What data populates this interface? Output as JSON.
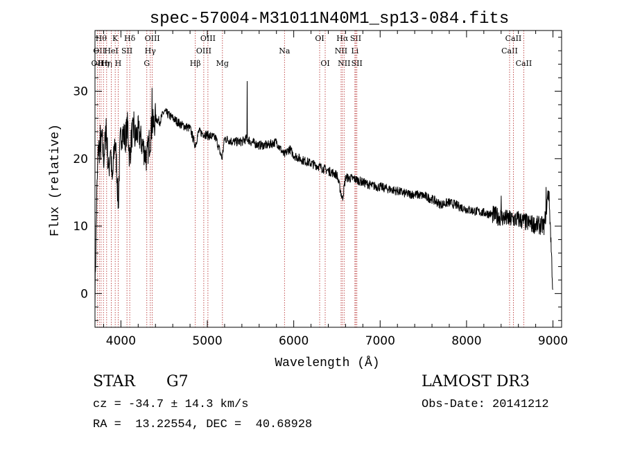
{
  "chart_data": {
    "type": "line",
    "title": "spec-57004-M31011N40M1_sp13-084.fits",
    "xlabel": "Wavelength (Å)",
    "ylabel": "Flux (relative)",
    "xlim": [
      3700,
      9100
    ],
    "ylim": [
      -5,
      39
    ],
    "x_ticks": [
      4000,
      5000,
      6000,
      7000,
      8000,
      9000
    ],
    "y_ticks": [
      0,
      10,
      20,
      30
    ],
    "x_tick_labels": [
      "4000",
      "5000",
      "6000",
      "7000",
      "8000",
      "9000"
    ],
    "y_tick_labels": [
      "0",
      "10",
      "20",
      "30"
    ],
    "spectrum_anchor_points": [
      [
        3700,
        0
      ],
      [
        3720,
        14
      ],
      [
        3740,
        22
      ],
      [
        3760,
        21
      ],
      [
        3780,
        23
      ],
      [
        3800,
        20
      ],
      [
        3830,
        24
      ],
      [
        3860,
        18
      ],
      [
        3880,
        22
      ],
      [
        3900,
        16
      ],
      [
        3930,
        23
      ],
      [
        3950,
        19
      ],
      [
        3970,
        13
      ],
      [
        3990,
        22
      ],
      [
        4010,
        24
      ],
      [
        4050,
        23
      ],
      [
        4080,
        25
      ],
      [
        4100,
        20
      ],
      [
        4130,
        24
      ],
      [
        4160,
        23
      ],
      [
        4200,
        24
      ],
      [
        4250,
        22
      ],
      [
        4300,
        20
      ],
      [
        4320,
        22
      ],
      [
        4340,
        23
      ],
      [
        4360,
        25
      ],
      [
        4380,
        25
      ],
      [
        4400,
        26
      ],
      [
        4450,
        25.5
      ],
      [
        4500,
        27
      ],
      [
        4550,
        26.5
      ],
      [
        4600,
        26
      ],
      [
        4700,
        25
      ],
      [
        4800,
        24.5
      ],
      [
        4860,
        22
      ],
      [
        4900,
        24
      ],
      [
        5000,
        23.5
      ],
      [
        5100,
        23
      ],
      [
        5170,
        20
      ],
      [
        5200,
        23
      ],
      [
        5300,
        22.5
      ],
      [
        5400,
        22.5
      ],
      [
        5460,
        23
      ],
      [
        5500,
        22.5
      ],
      [
        5600,
        22
      ],
      [
        5700,
        22
      ],
      [
        5800,
        22.5
      ],
      [
        5890,
        20.5
      ],
      [
        5950,
        21.5
      ],
      [
        6000,
        20.5
      ],
      [
        6100,
        19.8
      ],
      [
        6200,
        19.3
      ],
      [
        6300,
        18.8
      ],
      [
        6400,
        18.2
      ],
      [
        6500,
        17.6
      ],
      [
        6563,
        14
      ],
      [
        6600,
        17.2
      ],
      [
        6700,
        17
      ],
      [
        6800,
        16.5
      ],
      [
        6900,
        16
      ],
      [
        7000,
        15.8
      ],
      [
        7100,
        15.5
      ],
      [
        7200,
        15.2
      ],
      [
        7300,
        14.8
      ],
      [
        7400,
        14.7
      ],
      [
        7500,
        14.5
      ],
      [
        7600,
        14
      ],
      [
        7700,
        13.2
      ],
      [
        7800,
        13.5
      ],
      [
        7900,
        13
      ],
      [
        8000,
        12.5
      ],
      [
        8100,
        12.2
      ],
      [
        8200,
        12
      ],
      [
        8300,
        11.7
      ],
      [
        8400,
        11.3
      ],
      [
        8500,
        11
      ],
      [
        8600,
        11
      ],
      [
        8700,
        10.5
      ],
      [
        8800,
        10.2
      ],
      [
        8900,
        10
      ],
      [
        8950,
        15.5
      ],
      [
        8970,
        10
      ],
      [
        9000,
        0
      ]
    ],
    "spectrum_spikes": [
      [
        5460,
        31.5
      ],
      [
        4360,
        30.5
      ],
      [
        8400,
        14.5
      ],
      [
        8920,
        15.8
      ],
      [
        3760,
        25
      ],
      [
        3830,
        26
      ],
      [
        4150,
        27
      ]
    ],
    "line_markers": [
      {
        "wavelength": 3727,
        "label": "OII",
        "row": 2
      },
      {
        "wavelength": 3750,
        "label": "OII",
        "row": 1
      },
      {
        "wavelength": 3771,
        "label": "Hθ",
        "row": 0
      },
      {
        "wavelength": 3798,
        "label": "Hη",
        "row": 2
      },
      {
        "wavelength": 3835,
        "label": "Hη",
        "row": 2
      },
      {
        "wavelength": 3889,
        "label": "HeI",
        "row": 1
      },
      {
        "wavelength": 3934,
        "label": "K",
        "row": 0
      },
      {
        "wavelength": 3968,
        "label": "H",
        "row": 2
      },
      {
        "wavelength": 4070,
        "label": "SII",
        "row": 1
      },
      {
        "wavelength": 4102,
        "label": "Hδ",
        "row": 0
      },
      {
        "wavelength": 4300,
        "label": "G",
        "row": 2
      },
      {
        "wavelength": 4340,
        "label": "Hγ",
        "row": 1
      },
      {
        "wavelength": 4363,
        "label": "OIII",
        "row": 0
      },
      {
        "wavelength": 4861,
        "label": "Hβ",
        "row": 2
      },
      {
        "wavelength": 4959,
        "label": "OIII",
        "row": 1
      },
      {
        "wavelength": 5007,
        "label": "OIII",
        "row": 0
      },
      {
        "wavelength": 5175,
        "label": "Mg",
        "row": 2
      },
      {
        "wavelength": 5893,
        "label": "Na",
        "row": 1
      },
      {
        "wavelength": 6300,
        "label": "OI",
        "row": 0
      },
      {
        "wavelength": 6364,
        "label": "OI",
        "row": 2
      },
      {
        "wavelength": 6548,
        "label": "NII",
        "row": 1
      },
      {
        "wavelength": 6563,
        "label": "Hα",
        "row": 0
      },
      {
        "wavelength": 6583,
        "label": "NII",
        "row": 2
      },
      {
        "wavelength": 6708,
        "label": "Li",
        "row": 1
      },
      {
        "wavelength": 6717,
        "label": "SII",
        "row": 0
      },
      {
        "wavelength": 6731,
        "label": "SII",
        "row": 2
      },
      {
        "wavelength": 8498,
        "label": "CaII",
        "row": 1
      },
      {
        "wavelength": 8542,
        "label": "CaII",
        "row": 0
      },
      {
        "wavelength": 8662,
        "label": "CaII",
        "row": 2
      }
    ],
    "colors": {
      "spectrum": "#000000",
      "line_marker": "#b22222",
      "axis": "#000000"
    }
  },
  "footer": {
    "object_type": "STAR",
    "subclass": "G7",
    "survey": "LAMOST DR3",
    "redshift_text": "cz = -34.7 ± 14.3 km/s",
    "obs_date_text": "Obs-Date: 20141212",
    "coords_text": "RA =  13.22554, DEC =  40.68928"
  }
}
